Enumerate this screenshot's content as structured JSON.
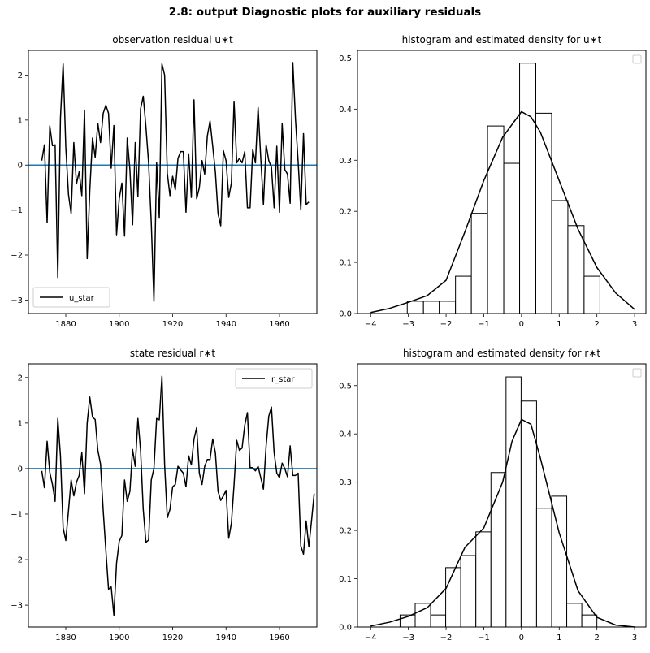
{
  "figure": {
    "suptitle": "2.8: output Diagnostic plots for auxiliary residuals"
  },
  "colors": {
    "series": "#000000",
    "zero_line": "#1f77b4",
    "hist_fill": "#ffffff",
    "hist_edge": "#000000",
    "legend_edge": "#cccccc"
  },
  "chart_data": [
    {
      "type": "line",
      "title": "observation residual u∗t",
      "xlim": [
        1866,
        1974
      ],
      "ylim": [
        -3.3,
        2.55
      ],
      "xticks": [
        1880,
        1900,
        1920,
        1940,
        1960
      ],
      "yticks": [
        -3,
        -2,
        -1,
        0,
        1,
        2
      ],
      "hline": 0,
      "legend": {
        "label": "u_star",
        "placement": "lower-left"
      },
      "x_start": 1871,
      "x_step": 1,
      "y": [
        0.1,
        0.45,
        -1.28,
        0.87,
        0.43,
        0.45,
        -2.5,
        1.05,
        2.25,
        0.4,
        -0.65,
        -1.08,
        0.5,
        -0.42,
        -0.15,
        -0.68,
        1.22,
        -2.08,
        -0.55,
        0.6,
        0.17,
        0.93,
        0.5,
        1.15,
        1.33,
        1.15,
        -0.07,
        0.88,
        -1.55,
        -0.75,
        -0.4,
        -1.58,
        0.6,
        -0.1,
        -1.33,
        0.5,
        -0.7,
        1.25,
        1.53,
        0.85,
        0.05,
        -1.28,
        -3.03,
        0.05,
        -1.18,
        2.25,
        2.0,
        -0.18,
        -0.68,
        -0.25,
        -0.55,
        0.15,
        0.3,
        0.3,
        -1.05,
        0.25,
        -0.72,
        1.45,
        -0.75,
        -0.5,
        0.1,
        -0.2,
        0.65,
        0.98,
        0.42,
        -0.15,
        -1.08,
        -1.35,
        0.32,
        0.1,
        -0.72,
        -0.4,
        1.42,
        0.05,
        0.15,
        0.05,
        0.3,
        -0.95,
        -0.95,
        0.35,
        0.05,
        1.28,
        0.15,
        -0.88,
        0.45,
        0.1,
        -0.05,
        -0.95,
        0.42,
        -1.05,
        0.92,
        -0.1,
        -0.2,
        -0.85,
        2.28,
        1.02,
        0.07,
        -1.0,
        0.7,
        -0.88,
        -0.82
      ]
    },
    {
      "type": "histogram",
      "title": "histogram and estimated density for u∗t",
      "xlim": [
        -4.35,
        3.3
      ],
      "ylim": [
        0,
        0.515
      ],
      "xticks": [
        -4,
        -3,
        -2,
        -1,
        0,
        1,
        2,
        3
      ],
      "yticks": [
        0.0,
        0.1,
        0.2,
        0.3,
        0.4,
        0.5
      ],
      "bin_edges": [
        -3.03,
        -2.6,
        -2.18,
        -1.75,
        -1.33,
        -0.9,
        -0.47,
        -0.05,
        0.38,
        0.8,
        1.23,
        1.66,
        2.08
      ],
      "counts": [
        0.024,
        0.024,
        0.024,
        0.073,
        0.196,
        0.367,
        0.294,
        0.49,
        0.392,
        0.221,
        0.172,
        0.073,
        0.098
      ],
      "density_x": [
        -4.0,
        -3.5,
        -3.0,
        -2.5,
        -2.0,
        -1.5,
        -1.0,
        -0.5,
        0.0,
        0.25,
        0.5,
        1.0,
        1.5,
        2.0,
        2.5,
        3.0
      ],
      "density_y": [
        0.002,
        0.01,
        0.022,
        0.035,
        0.065,
        0.16,
        0.26,
        0.345,
        0.395,
        0.385,
        0.355,
        0.26,
        0.165,
        0.09,
        0.04,
        0.008
      ],
      "legend": {
        "label": "",
        "placement": "upper-right"
      }
    },
    {
      "type": "line",
      "title": "state residual r∗t",
      "xlim": [
        1866,
        1974
      ],
      "ylim": [
        -3.48,
        2.3
      ],
      "xticks": [
        1880,
        1900,
        1920,
        1940,
        1960
      ],
      "yticks": [
        -3,
        -2,
        -1,
        0,
        1,
        2
      ],
      "hline": 0,
      "legend": {
        "label": "r_star",
        "placement": "upper-right"
      },
      "x_start": 1871,
      "x_step": 1,
      "y": [
        -0.05,
        -0.42,
        0.6,
        -0.08,
        -0.35,
        -0.72,
        1.1,
        0.28,
        -1.3,
        -1.58,
        -0.93,
        -0.25,
        -0.6,
        -0.3,
        -0.15,
        0.35,
        -0.55,
        1.0,
        1.57,
        1.13,
        1.08,
        0.4,
        0.1,
        -0.92,
        -1.8,
        -2.65,
        -2.6,
        -3.22,
        -2.08,
        -1.6,
        -1.47,
        -0.25,
        -0.72,
        -0.5,
        0.42,
        0.05,
        1.1,
        0.4,
        -0.9,
        -1.62,
        -1.57,
        -0.25,
        0.0,
        1.1,
        1.07,
        2.03,
        0.08,
        -1.08,
        -0.9,
        -0.4,
        -0.35,
        0.05,
        -0.03,
        -0.1,
        -0.4,
        0.28,
        0.08,
        0.65,
        0.9,
        -0.1,
        -0.35,
        0.05,
        0.2,
        0.2,
        0.65,
        0.35,
        -0.5,
        -0.7,
        -0.6,
        -0.48,
        -1.53,
        -1.2,
        -0.35,
        0.62,
        0.4,
        0.45,
        0.95,
        1.23,
        0.02,
        0.02,
        -0.05,
        0.05,
        -0.2,
        -0.45,
        0.5,
        1.15,
        1.35,
        0.35,
        -0.1,
        -0.2,
        0.12,
        0.0,
        -0.18,
        0.5,
        -0.15,
        -0.15,
        -0.1,
        -1.7,
        -1.88,
        -1.15,
        -1.72,
        -1.15,
        -0.55
      ]
    },
    {
      "type": "histogram",
      "title": "histogram and estimated density for r∗t",
      "xlim": [
        -4.35,
        3.3
      ],
      "ylim": [
        0,
        0.545
      ],
      "xticks": [
        -4,
        -3,
        -2,
        -1,
        0,
        1,
        2,
        3
      ],
      "yticks": [
        0.0,
        0.1,
        0.2,
        0.3,
        0.4,
        0.5
      ],
      "bin_edges": [
        -3.22,
        -2.82,
        -2.41,
        -2.01,
        -1.61,
        -1.21,
        -0.81,
        -0.41,
        -0.01,
        0.4,
        0.8,
        1.2,
        1.6,
        2.0
      ],
      "counts": [
        0.025,
        0.049,
        0.025,
        0.123,
        0.148,
        0.197,
        0.32,
        0.518,
        0.468,
        0.246,
        0.271,
        0.049,
        0.025
      ],
      "density_x": [
        -4.0,
        -3.5,
        -3.0,
        -2.5,
        -2.0,
        -1.5,
        -1.0,
        -0.5,
        -0.25,
        0.0,
        0.25,
        0.5,
        1.0,
        1.5,
        2.0,
        2.5,
        3.0
      ],
      "density_y": [
        0.002,
        0.01,
        0.022,
        0.04,
        0.08,
        0.165,
        0.205,
        0.3,
        0.385,
        0.43,
        0.42,
        0.35,
        0.195,
        0.075,
        0.02,
        0.004,
        0.0
      ],
      "legend": {
        "label": "",
        "placement": "upper-right"
      }
    }
  ]
}
